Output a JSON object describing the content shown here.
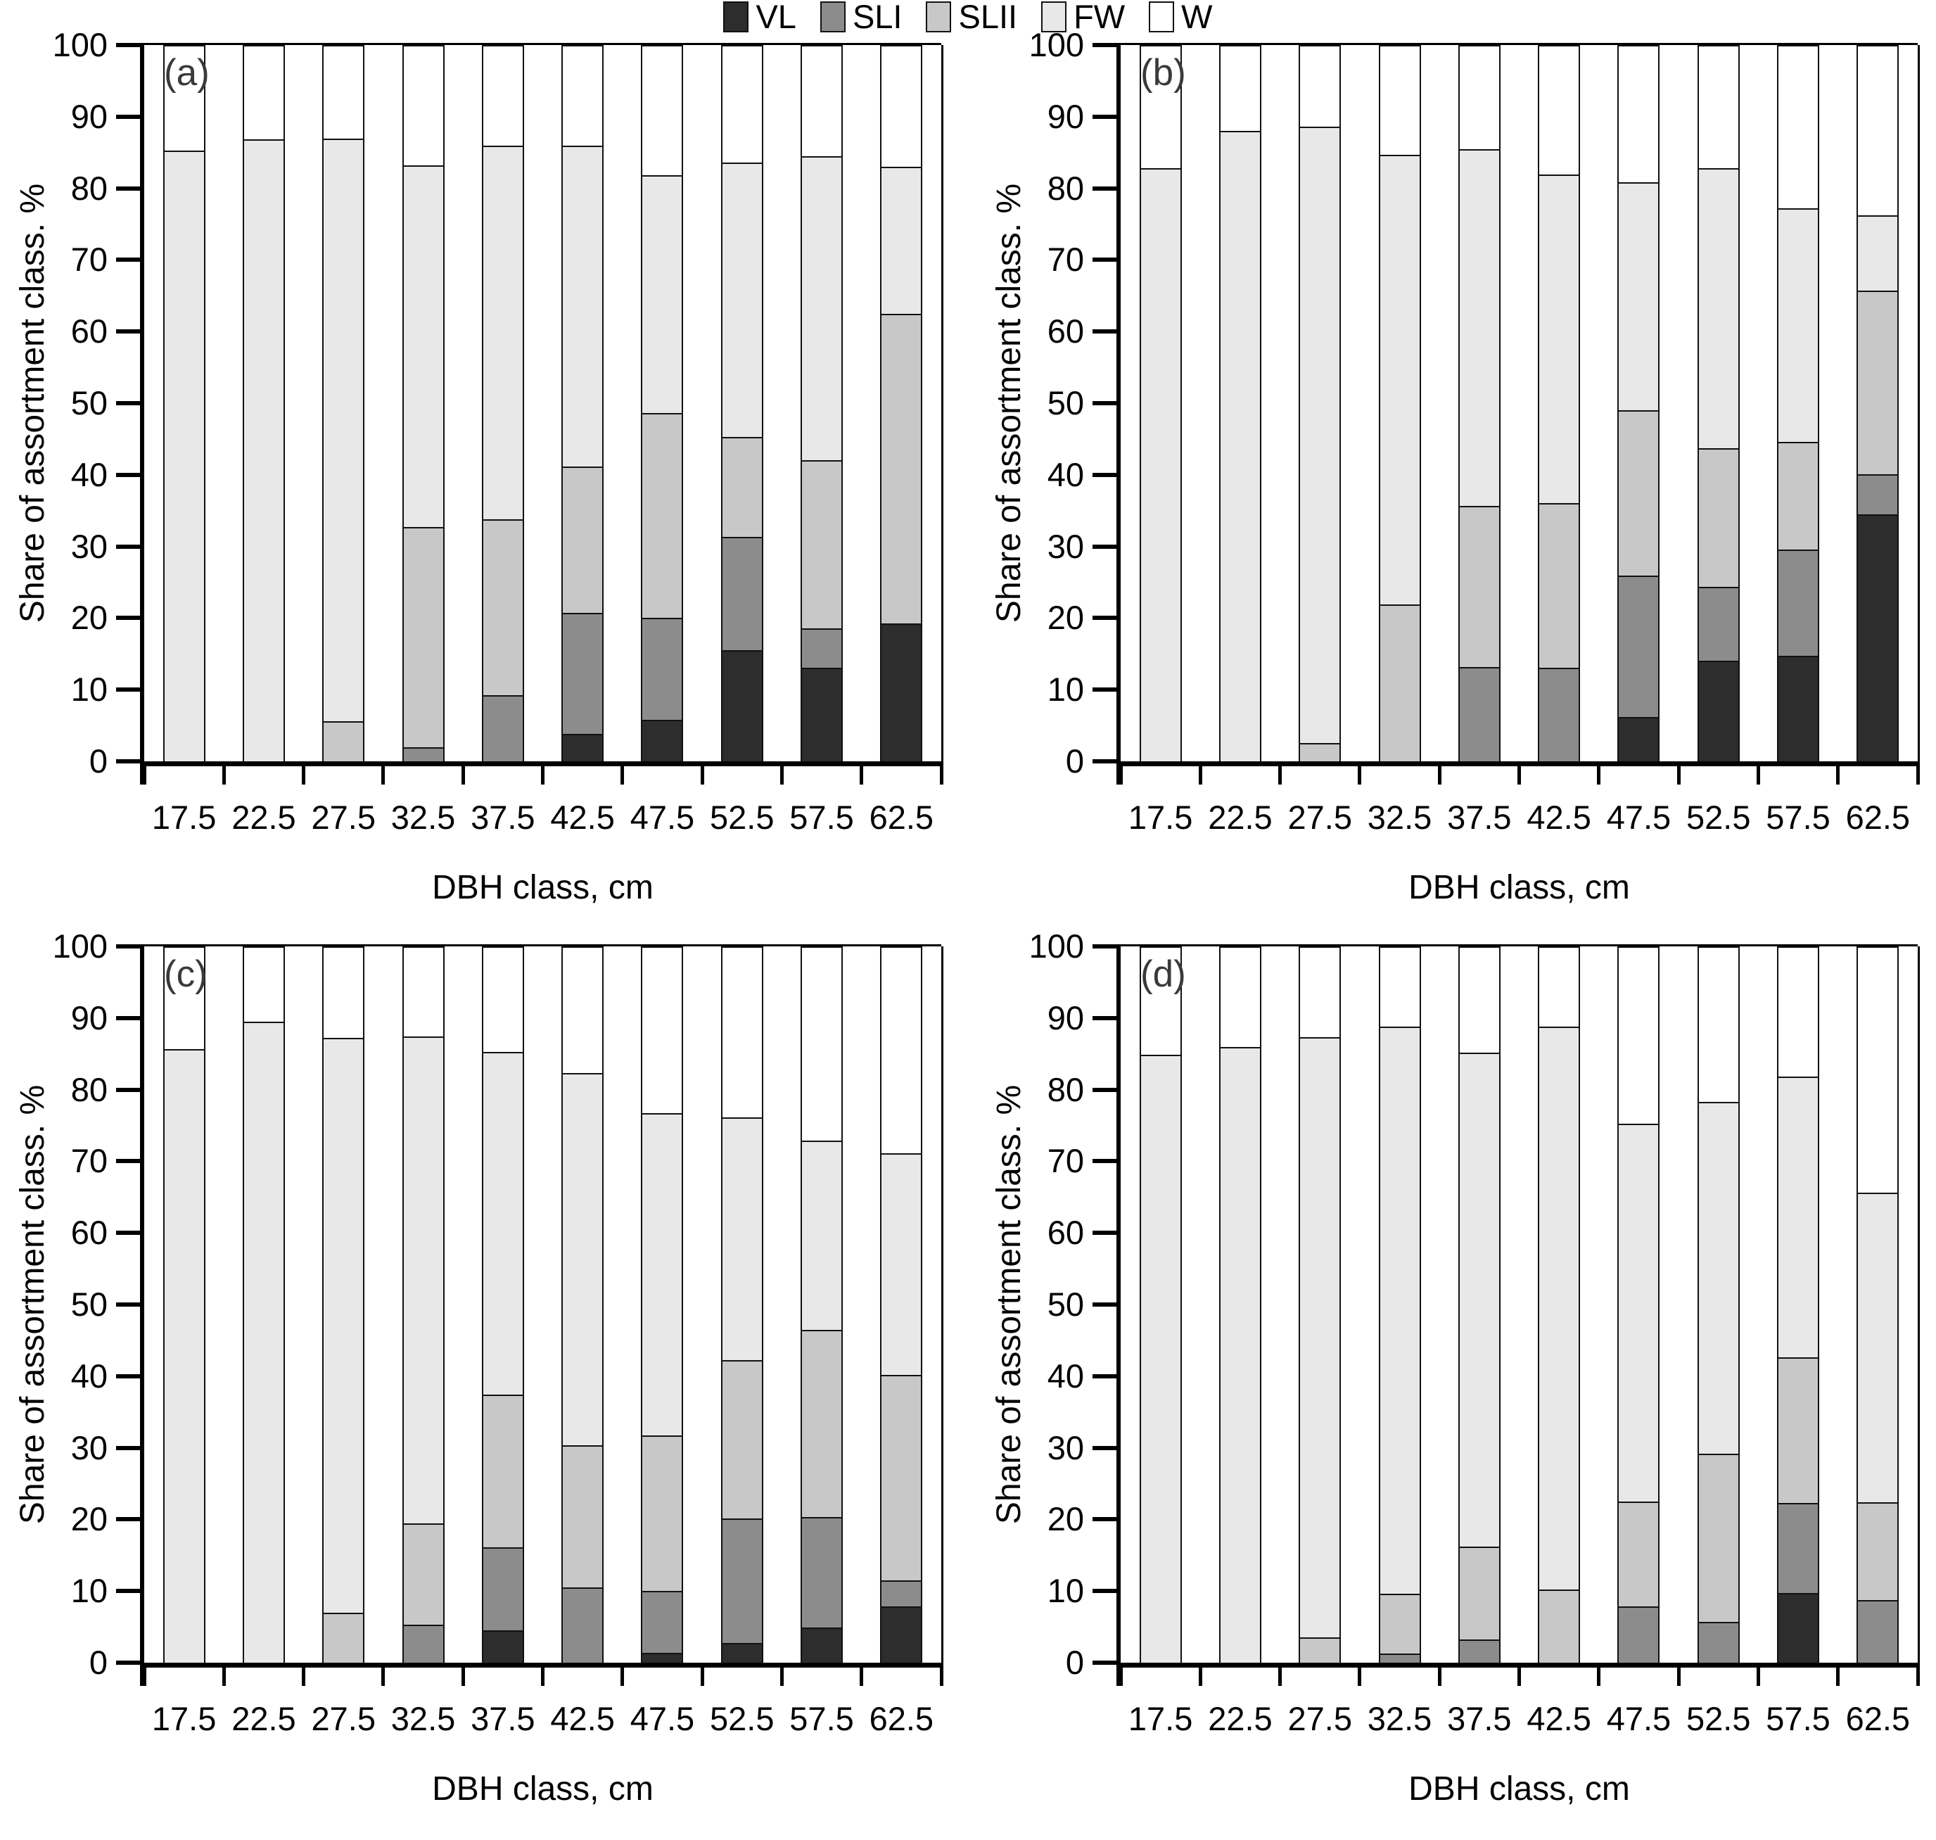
{
  "figure": {
    "y_axis_label": "Share of assortment class. %",
    "x_axis_label": "DBH class, cm",
    "y_ticks": [
      0,
      10,
      20,
      30,
      40,
      50,
      60,
      70,
      80,
      90,
      100
    ],
    "categories": [
      "17.5",
      "22.5",
      "27.5",
      "32.5",
      "37.5",
      "42.5",
      "47.5",
      "52.5",
      "57.5",
      "62.5"
    ],
    "legend": [
      {
        "label": "VL",
        "color": "#2d2d2d"
      },
      {
        "label": "SLI",
        "color": "#8c8c8c"
      },
      {
        "label": "SLII",
        "color": "#c8c8c8"
      },
      {
        "label": "FW",
        "color": "#e8e8e8"
      },
      {
        "label": "W",
        "color": "#ffffff"
      }
    ],
    "colors": {
      "VL": "#2d2d2d",
      "SLI": "#8c8c8c",
      "SLII": "#c8c8c8",
      "FW": "#e8e8e8",
      "W": "#ffffff",
      "border": "#111111",
      "panel_letter": "#3a3a3a"
    }
  },
  "chart_data": [
    {
      "type": "bar",
      "stacked": true,
      "panel_label": "(a)",
      "xlabel": "DBH class, cm",
      "ylabel": "Share of assortment class. %",
      "ylim": [
        0,
        100
      ],
      "grid": false,
      "categories": [
        17.5,
        22.5,
        27.5,
        32.5,
        37.5,
        42.5,
        47.5,
        52.5,
        57.5,
        62.5
      ],
      "series": [
        {
          "name": "VL",
          "values": [
            0,
            0,
            0,
            0,
            0,
            3.8,
            5.8,
            15.5,
            13.1,
            19.3
          ]
        },
        {
          "name": "SLI",
          "values": [
            0,
            0,
            0,
            2.0,
            9.2,
            16.9,
            14.2,
            15.8,
            5.5,
            0
          ]
        },
        {
          "name": "SLII",
          "values": [
            0,
            0,
            5.6,
            30.7,
            24.6,
            20.5,
            28.6,
            14.0,
            23.4,
            43.2
          ]
        },
        {
          "name": "FW",
          "values": [
            85.3,
            86.8,
            81.3,
            50.5,
            52.2,
            44.8,
            33.2,
            38.3,
            42.5,
            20.5
          ]
        },
        {
          "name": "W",
          "values": [
            14.7,
            13.2,
            13.1,
            16.8,
            14.0,
            14.0,
            18.2,
            16.4,
            15.5,
            17.0
          ]
        }
      ]
    },
    {
      "type": "bar",
      "stacked": true,
      "panel_label": "(b)",
      "xlabel": "DBH class, cm",
      "ylabel": "Share of assortment class. %",
      "ylim": [
        0,
        100
      ],
      "grid": false,
      "categories": [
        17.5,
        22.5,
        27.5,
        32.5,
        37.5,
        42.5,
        47.5,
        52.5,
        57.5,
        62.5
      ],
      "series": [
        {
          "name": "VL",
          "values": [
            0,
            0,
            0,
            0,
            0,
            0,
            6.2,
            14.0,
            14.7,
            34.5
          ]
        },
        {
          "name": "SLI",
          "values": [
            0,
            0,
            0,
            0,
            13.2,
            13.1,
            19.7,
            10.4,
            14.9,
            5.6
          ]
        },
        {
          "name": "SLII",
          "values": [
            0,
            0,
            2.6,
            21.9,
            22.5,
            23.0,
            23.1,
            19.3,
            15.0,
            25.6
          ]
        },
        {
          "name": "FW",
          "values": [
            82.8,
            88.0,
            86.0,
            62.8,
            49.8,
            45.8,
            31.8,
            39.1,
            32.6,
            10.5
          ]
        },
        {
          "name": "W",
          "values": [
            17.2,
            12.0,
            11.4,
            15.3,
            14.5,
            18.1,
            19.2,
            17.2,
            22.8,
            23.8
          ]
        }
      ]
    },
    {
      "type": "bar",
      "stacked": true,
      "panel_label": "(c)",
      "xlabel": "DBH class, cm",
      "ylabel": "Share of assortment class. %",
      "ylim": [
        0,
        100
      ],
      "grid": false,
      "categories": [
        17.5,
        22.5,
        27.5,
        32.5,
        37.5,
        42.5,
        47.5,
        52.5,
        57.5,
        62.5
      ],
      "series": [
        {
          "name": "VL",
          "values": [
            0,
            0,
            0,
            0,
            4.5,
            0,
            1.4,
            2.8,
            4.9,
            7.9
          ]
        },
        {
          "name": "SLI",
          "values": [
            0,
            0,
            0,
            5.3,
            11.6,
            10.5,
            8.6,
            17.3,
            15.4,
            3.6
          ]
        },
        {
          "name": "SLII",
          "values": [
            0,
            0,
            7.0,
            14.2,
            21.3,
            19.9,
            21.7,
            22.1,
            26.2,
            28.7
          ]
        },
        {
          "name": "FW",
          "values": [
            85.7,
            89.5,
            80.2,
            67.9,
            47.9,
            51.9,
            45.0,
            33.9,
            26.4,
            30.9
          ]
        },
        {
          "name": "W",
          "values": [
            14.3,
            10.5,
            12.8,
            12.6,
            14.7,
            17.7,
            23.3,
            23.9,
            27.1,
            28.9
          ]
        }
      ]
    },
    {
      "type": "bar",
      "stacked": true,
      "panel_label": "(d)",
      "xlabel": "DBH class, cm",
      "ylabel": "Share of assortment class. %",
      "ylim": [
        0,
        100
      ],
      "grid": false,
      "categories": [
        17.5,
        22.5,
        27.5,
        32.5,
        37.5,
        42.5,
        47.5,
        52.5,
        57.5,
        62.5
      ],
      "series": [
        {
          "name": "VL",
          "values": [
            0,
            0,
            0,
            0,
            0,
            0,
            0,
            0,
            9.7,
            0
          ]
        },
        {
          "name": "SLI",
          "values": [
            0,
            0,
            0,
            1.3,
            3.2,
            0,
            7.9,
            5.7,
            12.6,
            8.7
          ]
        },
        {
          "name": "SLII",
          "values": [
            0,
            0,
            3.5,
            8.3,
            13.0,
            10.2,
            14.6,
            23.5,
            20.3,
            13.7
          ]
        },
        {
          "name": "FW",
          "values": [
            84.9,
            86.0,
            83.8,
            79.2,
            69.0,
            78.6,
            52.7,
            49.1,
            39.2,
            43.2
          ]
        },
        {
          "name": "W",
          "values": [
            15.1,
            14.0,
            12.7,
            11.2,
            14.8,
            11.2,
            24.8,
            21.7,
            18.2,
            34.4
          ]
        }
      ]
    }
  ]
}
